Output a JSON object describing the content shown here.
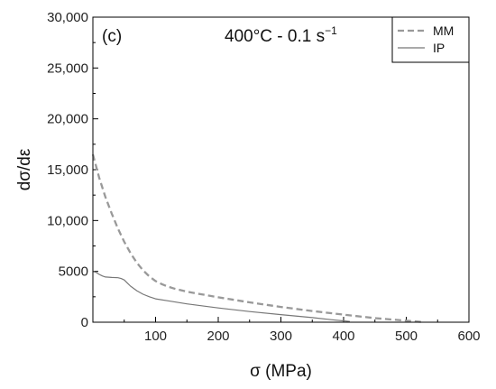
{
  "chart_data": {
    "type": "line",
    "panel_label": "(c)",
    "annotation": {
      "text": "400°C - 0.1 s",
      "superscript": "−1"
    },
    "xlabel": "σ (MPa)",
    "ylabel": "dσ/dε",
    "xlim": [
      0,
      600
    ],
    "ylim": [
      0,
      30000
    ],
    "xticks": [
      100,
      200,
      300,
      400,
      500,
      600
    ],
    "yticks": [
      0,
      5000,
      10000,
      15000,
      20000,
      25000,
      30000
    ],
    "xtick_labels": [
      "100",
      "200",
      "300",
      "400",
      "500",
      "600"
    ],
    "ytick_labels": [
      "0",
      "5000",
      "10,000",
      "15,000",
      "20,000",
      "25,000",
      "30,000"
    ],
    "grid": false,
    "legend_position": "top-right",
    "series": [
      {
        "name": "MM",
        "style": "dashed",
        "color": "#999999",
        "x": [
          0,
          10,
          20,
          30,
          40,
          50,
          60,
          70,
          80,
          90,
          100,
          110,
          120,
          130,
          150,
          200,
          250,
          300,
          350,
          400,
          450,
          500,
          525
        ],
        "y": [
          16500,
          14200,
          12300,
          10700,
          9200,
          7900,
          6800,
          5850,
          5100,
          4500,
          4050,
          3750,
          3500,
          3300,
          3000,
          2450,
          1950,
          1500,
          1100,
          750,
          400,
          150,
          30
        ]
      },
      {
        "name": "IP",
        "style": "solid",
        "color": "#777777",
        "x": [
          0,
          5,
          10,
          15,
          20,
          30,
          40,
          45,
          50,
          55,
          60,
          70,
          80,
          90,
          100,
          120,
          150,
          200,
          250,
          300,
          350,
          380,
          410
        ],
        "y": [
          5000,
          4900,
          4700,
          4550,
          4450,
          4400,
          4380,
          4300,
          4150,
          3850,
          3550,
          3100,
          2750,
          2500,
          2300,
          2100,
          1800,
          1400,
          1050,
          750,
          450,
          250,
          70
        ]
      }
    ]
  }
}
